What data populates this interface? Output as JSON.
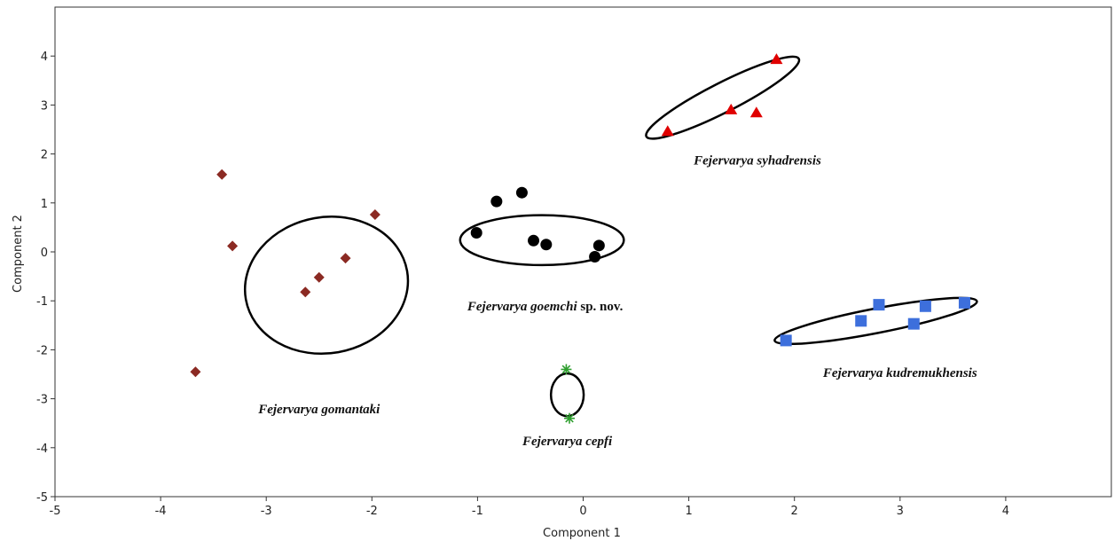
{
  "chart_data": {
    "type": "scatter",
    "xlabel": "Component 1",
    "ylabel": "Component 2",
    "xlim": [
      -5,
      5
    ],
    "ylim": [
      -5,
      5
    ],
    "x_ticks": [
      -5,
      -4,
      -3,
      -2,
      -1,
      0,
      1,
      2,
      3,
      4
    ],
    "y_ticks": [
      -5,
      -4,
      -3,
      -2,
      -1,
      0,
      1,
      2,
      3,
      4
    ],
    "grid": false,
    "groups": [
      {
        "id": "gomantaki",
        "label": "Fejervarya gomantaki",
        "label_suffix": "",
        "marker": "diamond",
        "color": "#8b2a23",
        "points": [
          [
            -3.42,
            1.58
          ],
          [
            -3.32,
            0.12
          ],
          [
            -1.97,
            0.76
          ],
          [
            -2.25,
            -0.13
          ],
          [
            -2.5,
            -0.52
          ],
          [
            -2.63,
            -0.82
          ],
          [
            -3.67,
            -2.45
          ]
        ],
        "ellipse": {
          "cx": -2.43,
          "cy": -0.68,
          "rx": 1.55,
          "ry": 2.78,
          "angle_deg": 10
        }
      },
      {
        "id": "goemchi",
        "label": "Fejervarya goemchi",
        "label_suffix": " sp. nov.",
        "marker": "circle",
        "color": "#000000",
        "points": [
          [
            -1.01,
            0.39
          ],
          [
            -0.82,
            1.03
          ],
          [
            -0.58,
            1.21
          ],
          [
            -0.47,
            0.23
          ],
          [
            -0.35,
            0.15
          ],
          [
            0.11,
            -0.1
          ],
          [
            0.15,
            0.13
          ]
        ],
        "ellipse": {
          "cx": -0.39,
          "cy": 0.24,
          "rx": 1.55,
          "ry": 1.02,
          "angle_deg": 0
        }
      },
      {
        "id": "syhadrensis",
        "label": "Fejervarya syhadrensis",
        "label_suffix": "",
        "marker": "triangle",
        "color": "#e00000",
        "points": [
          [
            0.8,
            2.46
          ],
          [
            1.4,
            2.9
          ],
          [
            1.64,
            2.84
          ],
          [
            1.83,
            3.93
          ]
        ],
        "ellipse": {
          "cx": 1.32,
          "cy": 3.15,
          "rx": 1.62,
          "ry": 0.6,
          "angle_deg": 27
        }
      },
      {
        "id": "kudremukhensis",
        "label": "Fejervarya kudremukhensis",
        "label_suffix": "",
        "marker": "square",
        "color": "#3d6fdc",
        "points": [
          [
            1.92,
            -1.81
          ],
          [
            2.63,
            -1.41
          ],
          [
            2.8,
            -1.08
          ],
          [
            3.13,
            -1.47
          ],
          [
            3.24,
            -1.11
          ],
          [
            3.61,
            -1.04
          ]
        ],
        "ellipse": {
          "cx": 2.77,
          "cy": -1.41,
          "rx": 1.95,
          "ry": 0.5,
          "angle_deg": 11
        }
      },
      {
        "id": "cepfi",
        "label": "Fejervarya cepfi",
        "label_suffix": "",
        "marker": "asterisk",
        "color": "#2e9e2e",
        "points": [
          [
            -0.16,
            -2.4
          ],
          [
            -0.13,
            -3.4
          ]
        ],
        "ellipse": {
          "cx": -0.15,
          "cy": -2.92,
          "rx": 0.31,
          "ry": 0.87,
          "angle_deg": 0
        }
      }
    ]
  }
}
